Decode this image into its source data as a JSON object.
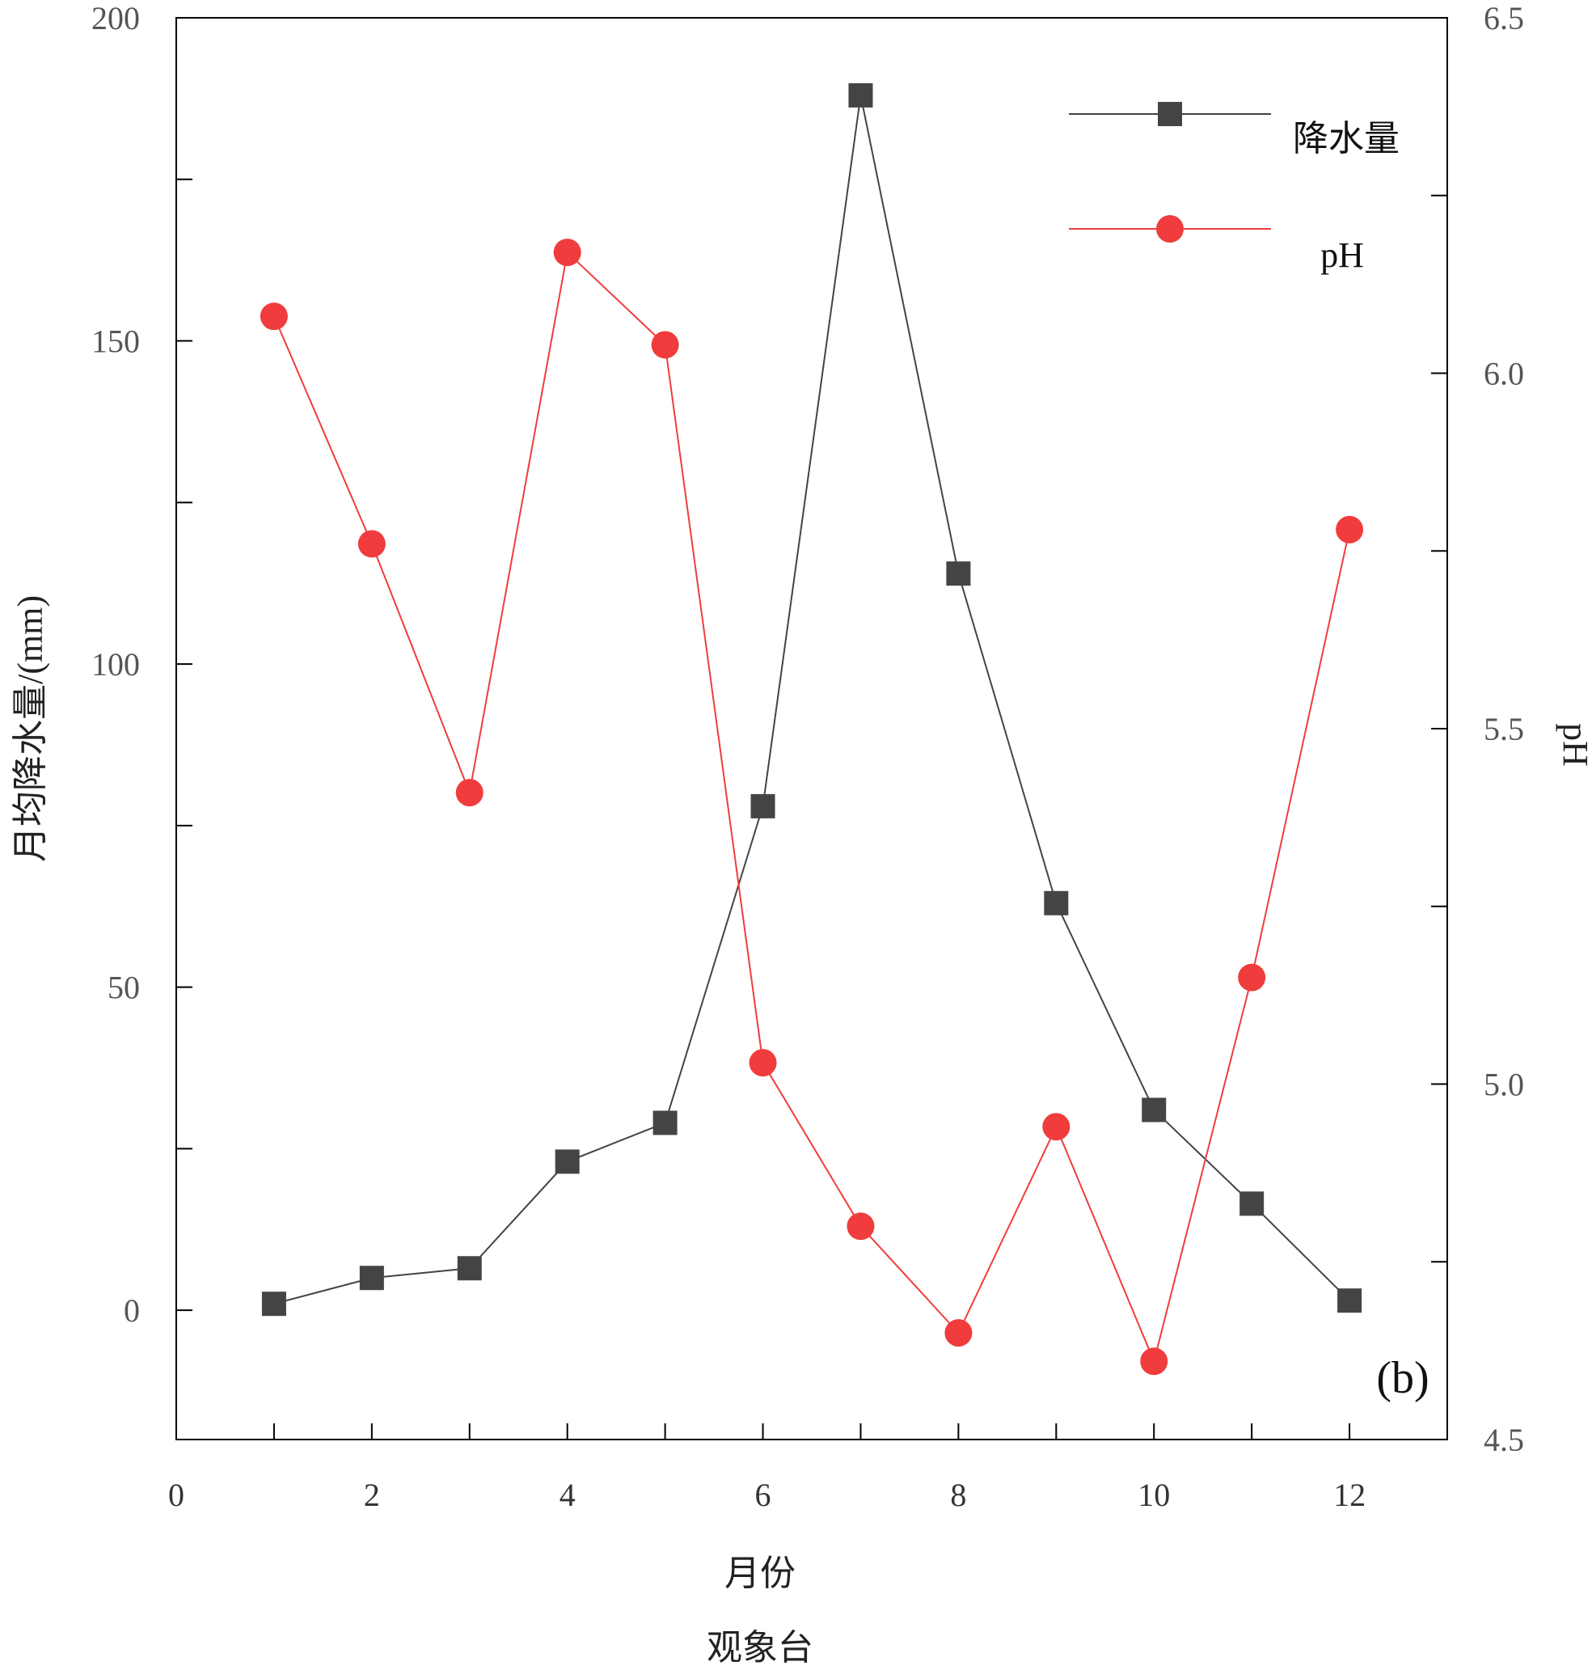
{
  "chart_data": {
    "type": "line",
    "panel_label": "(b)",
    "x": [
      1,
      2,
      3,
      4,
      5,
      6,
      7,
      8,
      9,
      10,
      11,
      12
    ],
    "xlabel": "月份",
    "subtitle": "观象台",
    "xlim": [
      0,
      13
    ],
    "xticks": [
      0,
      2,
      4,
      6,
      8,
      10,
      12
    ],
    "y_left": {
      "label": "月均降水量/(mm)",
      "lim": [
        -20,
        200
      ],
      "ticks": [
        0,
        50,
        100,
        150,
        200
      ],
      "minor_ticks": [
        25,
        75,
        125,
        175
      ]
    },
    "y_right": {
      "label": "pH",
      "lim": [
        4.5,
        6.5
      ],
      "ticks": [
        4.5,
        5.0,
        5.5,
        6.0,
        6.5
      ],
      "minor_ticks": [
        4.75,
        5.25,
        5.75,
        6.25
      ]
    },
    "series": [
      {
        "name": "降水量",
        "axis": "left",
        "marker": "square",
        "color": "#444444",
        "values": [
          1.0,
          5.0,
          6.5,
          23.0,
          29.0,
          78.0,
          188.0,
          114.0,
          63.0,
          31.0,
          16.5,
          1.5
        ]
      },
      {
        "name": "pH",
        "axis": "right",
        "marker": "circle",
        "color": "#f03c3c",
        "values": [
          6.08,
          5.76,
          5.41,
          6.17,
          6.04,
          5.03,
          4.8,
          4.65,
          4.94,
          4.61,
          5.15,
          5.78
        ]
      }
    ],
    "legend": "top-right",
    "grid": false
  }
}
